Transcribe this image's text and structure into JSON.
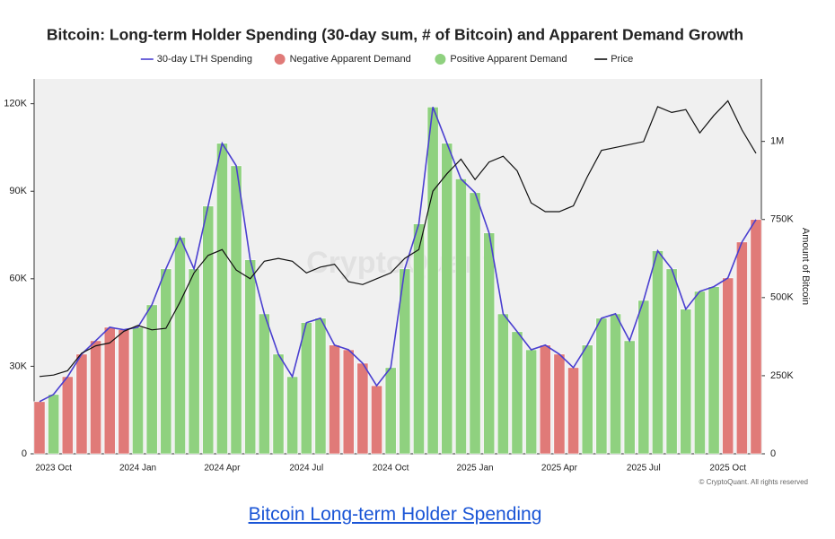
{
  "chart_data": {
    "type": "combo",
    "title": "Bitcoin: Long-term Holder Spending (30-day sum, # of Bitcoin) and Apparent Demand Growth",
    "watermark": "CryptoQuant",
    "credit": "© CryptoQuant. All rights reserved",
    "y2label": "Amount of Bitcoin",
    "categories": [
      null,
      "2023 Oct",
      null,
      null,
      null,
      null,
      null,
      "2024 Jan",
      null,
      null,
      null,
      null,
      null,
      "2024 Apr",
      null,
      null,
      null,
      null,
      null,
      "2024 Jul",
      null,
      null,
      null,
      null,
      null,
      "2024 Oct",
      null,
      null,
      null,
      null,
      null,
      "2025 Jan",
      null,
      null,
      null,
      null,
      null,
      "2025 Apr",
      null,
      null,
      null,
      null,
      null,
      "2025 Jul",
      null,
      null,
      null,
      null,
      null,
      "2025 Oct",
      null,
      null
    ],
    "ylim": [
      0,
      128500
    ],
    "yticks": [
      0,
      {
        "value": 30000,
        "label": "30K"
      },
      {
        "value": 60000,
        "label": "60K"
      },
      {
        "value": 90000,
        "label": "90K"
      },
      {
        "value": 120000,
        "label": "120K"
      }
    ],
    "y2lim": [
      0,
      1200000
    ],
    "y2ticks": [
      0,
      {
        "value": 250000,
        "label": "250K"
      },
      {
        "value": 500000,
        "label": "500K"
      },
      {
        "value": 750000,
        "label": "750K"
      },
      {
        "value": 1000000,
        "label": "1M"
      }
    ],
    "series": [
      {
        "name": "30-day LTH Spending",
        "type": "line",
        "axis": "y2",
        "color": "#4a3fd0",
        "values": [
          167000,
          190000,
          247000,
          319000,
          362000,
          405000,
          397000,
          405000,
          477000,
          592000,
          693000,
          592000,
          793000,
          994000,
          922000,
          621000,
          448000,
          319000,
          247000,
          420000,
          434000,
          348000,
          333000,
          290000,
          218000,
          276000,
          592000,
          736000,
          1110000,
          994000,
          880000,
          836000,
          707000,
          448000,
          391000,
          333000,
          348000,
          319000,
          276000,
          348000,
          434000,
          448000,
          362000,
          491000,
          650000,
          592000,
          463000,
          520000,
          535000,
          563000,
          678000,
          750000
        ]
      },
      {
        "name": "Negative Apparent Demand",
        "type": "bar",
        "axis": "y2",
        "color": "#e07a78",
        "values": [
          167000,
          null,
          247000,
          319000,
          362000,
          405000,
          397000,
          null,
          null,
          null,
          null,
          null,
          null,
          null,
          null,
          null,
          null,
          null,
          null,
          null,
          null,
          348000,
          333000,
          290000,
          218000,
          null,
          null,
          null,
          null,
          null,
          null,
          null,
          null,
          null,
          null,
          null,
          348000,
          319000,
          276000,
          null,
          null,
          null,
          null,
          null,
          null,
          null,
          null,
          null,
          null,
          563000,
          678000,
          750000
        ]
      },
      {
        "name": "Positive Apparent Demand",
        "type": "bar",
        "axis": "y2",
        "color": "#8fd17f",
        "values": [
          null,
          190000,
          null,
          null,
          null,
          null,
          null,
          405000,
          477000,
          592000,
          693000,
          592000,
          793000,
          994000,
          922000,
          621000,
          448000,
          319000,
          247000,
          420000,
          434000,
          null,
          null,
          null,
          null,
          276000,
          592000,
          736000,
          1110000,
          994000,
          880000,
          836000,
          707000,
          448000,
          391000,
          333000,
          null,
          null,
          null,
          348000,
          434000,
          448000,
          362000,
          491000,
          650000,
          592000,
          463000,
          520000,
          535000,
          null,
          null,
          null
        ]
      },
      {
        "name": "Price",
        "type": "line",
        "axis": "y",
        "color": "#111111",
        "values": [
          26500,
          27000,
          28500,
          34500,
          37000,
          38000,
          42000,
          44000,
          42500,
          43000,
          52000,
          62000,
          68000,
          70000,
          63000,
          60000,
          66000,
          67000,
          66000,
          62000,
          64000,
          65000,
          59000,
          58000,
          60000,
          62000,
          67000,
          70000,
          90000,
          96000,
          101000,
          94000,
          100000,
          102000,
          97000,
          86000,
          83000,
          83000,
          85000,
          95000,
          104000,
          105000,
          106000,
          107000,
          119000,
          117000,
          118000,
          110000,
          116000,
          121000,
          111000,
          103000
        ]
      }
    ]
  },
  "link": "Bitcoin Long-term Holder Spending"
}
